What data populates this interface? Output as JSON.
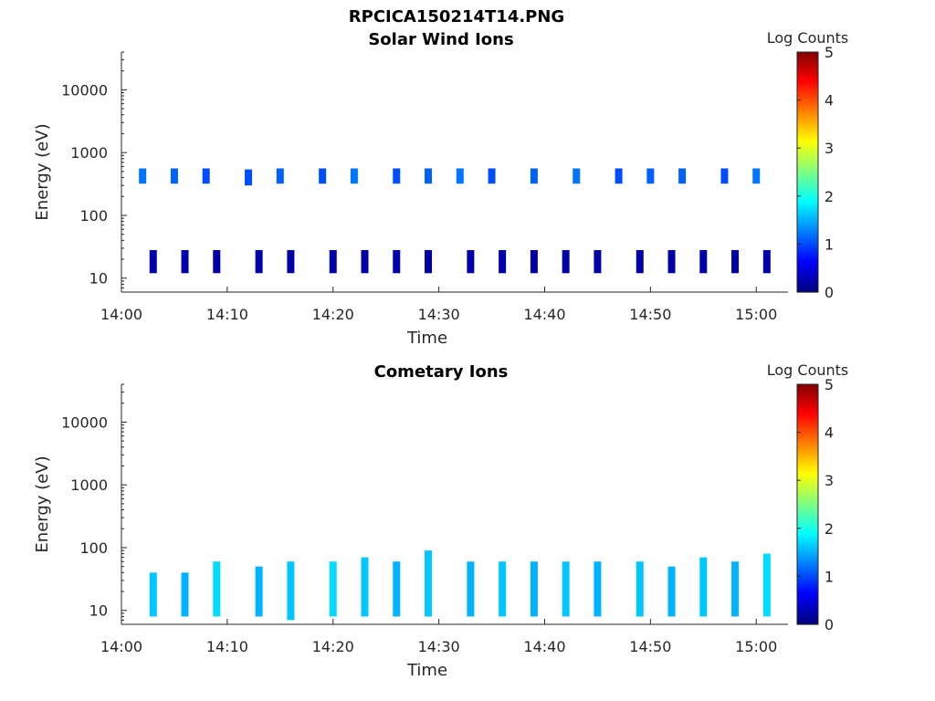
{
  "figure": {
    "title": "RPCICA150214T14.PNG"
  },
  "chart_data": [
    {
      "type": "heatmap",
      "title": "Solar Wind Ions",
      "xlabel": "Time",
      "ylabel": "Energy (eV)",
      "x_ticks": [
        "14:00",
        "14:10",
        "14:20",
        "14:30",
        "14:40",
        "14:50",
        "15:00"
      ],
      "xlim": [
        "14:00",
        "15:03"
      ],
      "y_scale": "log",
      "y_ticks": [
        10,
        100,
        1000,
        10000
      ],
      "y_tick_labels": [
        "10",
        "100",
        "1000",
        "10000"
      ],
      "ylim": [
        6,
        40000
      ],
      "colorbar": {
        "label": "Log Counts",
        "min": 0,
        "max": 5,
        "ticks": [
          "0",
          "1",
          "2",
          "3",
          "4",
          "5"
        ],
        "colormap": "jet"
      },
      "cells": [
        {
          "t": "14:02",
          "e_lo": 320,
          "e_hi": 560,
          "v": 1.2
        },
        {
          "t": "14:05",
          "e_lo": 320,
          "e_hi": 560,
          "v": 1.1
        },
        {
          "t": "14:08",
          "e_lo": 320,
          "e_hi": 560,
          "v": 1.0
        },
        {
          "t": "14:12",
          "e_lo": 300,
          "e_hi": 540,
          "v": 1.0
        },
        {
          "t": "14:15",
          "e_lo": 320,
          "e_hi": 560,
          "v": 1.1
        },
        {
          "t": "14:19",
          "e_lo": 320,
          "e_hi": 560,
          "v": 1.0
        },
        {
          "t": "14:22",
          "e_lo": 320,
          "e_hi": 560,
          "v": 1.2
        },
        {
          "t": "14:26",
          "e_lo": 320,
          "e_hi": 560,
          "v": 1.0
        },
        {
          "t": "14:29",
          "e_lo": 320,
          "e_hi": 560,
          "v": 1.1
        },
        {
          "t": "14:32",
          "e_lo": 320,
          "e_hi": 560,
          "v": 1.2
        },
        {
          "t": "14:35",
          "e_lo": 320,
          "e_hi": 560,
          "v": 1.0
        },
        {
          "t": "14:39",
          "e_lo": 320,
          "e_hi": 560,
          "v": 1.1
        },
        {
          "t": "14:43",
          "e_lo": 320,
          "e_hi": 560,
          "v": 1.2
        },
        {
          "t": "14:47",
          "e_lo": 320,
          "e_hi": 560,
          "v": 1.0
        },
        {
          "t": "14:50",
          "e_lo": 320,
          "e_hi": 560,
          "v": 1.1
        },
        {
          "t": "14:53",
          "e_lo": 320,
          "e_hi": 560,
          "v": 1.1
        },
        {
          "t": "14:57",
          "e_lo": 320,
          "e_hi": 560,
          "v": 1.0
        },
        {
          "t": "15:00",
          "e_lo": 320,
          "e_hi": 560,
          "v": 1.2
        },
        {
          "t": "14:03",
          "e_lo": 12,
          "e_hi": 28,
          "v": 0.2
        },
        {
          "t": "14:06",
          "e_lo": 12,
          "e_hi": 28,
          "v": 0.2
        },
        {
          "t": "14:09",
          "e_lo": 12,
          "e_hi": 28,
          "v": 0.2
        },
        {
          "t": "14:13",
          "e_lo": 12,
          "e_hi": 28,
          "v": 0.2
        },
        {
          "t": "14:16",
          "e_lo": 12,
          "e_hi": 28,
          "v": 0.2
        },
        {
          "t": "14:20",
          "e_lo": 12,
          "e_hi": 28,
          "v": 0.2
        },
        {
          "t": "14:23",
          "e_lo": 12,
          "e_hi": 28,
          "v": 0.2
        },
        {
          "t": "14:26",
          "e_lo": 12,
          "e_hi": 28,
          "v": 0.2
        },
        {
          "t": "14:29",
          "e_lo": 12,
          "e_hi": 28,
          "v": 0.2
        },
        {
          "t": "14:33",
          "e_lo": 12,
          "e_hi": 28,
          "v": 0.2
        },
        {
          "t": "14:36",
          "e_lo": 12,
          "e_hi": 28,
          "v": 0.2
        },
        {
          "t": "14:39",
          "e_lo": 12,
          "e_hi": 28,
          "v": 0.2
        },
        {
          "t": "14:42",
          "e_lo": 12,
          "e_hi": 28,
          "v": 0.2
        },
        {
          "t": "14:45",
          "e_lo": 12,
          "e_hi": 28,
          "v": 0.2
        },
        {
          "t": "14:49",
          "e_lo": 12,
          "e_hi": 28,
          "v": 0.2
        },
        {
          "t": "14:52",
          "e_lo": 12,
          "e_hi": 28,
          "v": 0.2
        },
        {
          "t": "14:55",
          "e_lo": 12,
          "e_hi": 28,
          "v": 0.2
        },
        {
          "t": "14:58",
          "e_lo": 12,
          "e_hi": 28,
          "v": 0.2
        },
        {
          "t": "15:01",
          "e_lo": 12,
          "e_hi": 28,
          "v": 0.2
        }
      ]
    },
    {
      "type": "heatmap",
      "title": "Cometary Ions",
      "xlabel": "Time",
      "ylabel": "Energy (eV)",
      "x_ticks": [
        "14:00",
        "14:10",
        "14:20",
        "14:30",
        "14:40",
        "14:50",
        "15:00"
      ],
      "xlim": [
        "14:00",
        "15:03"
      ],
      "y_scale": "log",
      "y_ticks": [
        10,
        100,
        1000,
        10000
      ],
      "y_tick_labels": [
        "10",
        "100",
        "1000",
        "10000"
      ],
      "ylim": [
        6,
        40000
      ],
      "colorbar": {
        "label": "Log Counts",
        "min": 0,
        "max": 5,
        "ticks": [
          "0",
          "1",
          "2",
          "3",
          "4",
          "5"
        ],
        "colormap": "jet"
      },
      "cells": [
        {
          "t": "14:03",
          "e_lo": 8,
          "e_hi": 40,
          "v": 1.6
        },
        {
          "t": "14:06",
          "e_lo": 8,
          "e_hi": 40,
          "v": 1.5
        },
        {
          "t": "14:09",
          "e_lo": 8,
          "e_hi": 60,
          "v": 1.7
        },
        {
          "t": "14:13",
          "e_lo": 8,
          "e_hi": 50,
          "v": 1.5
        },
        {
          "t": "14:16",
          "e_lo": 7,
          "e_hi": 60,
          "v": 1.6
        },
        {
          "t": "14:20",
          "e_lo": 8,
          "e_hi": 60,
          "v": 1.7
        },
        {
          "t": "14:23",
          "e_lo": 8,
          "e_hi": 70,
          "v": 1.6
        },
        {
          "t": "14:26",
          "e_lo": 8,
          "e_hi": 60,
          "v": 1.5
        },
        {
          "t": "14:29",
          "e_lo": 8,
          "e_hi": 90,
          "v": 1.6
        },
        {
          "t": "14:33",
          "e_lo": 8,
          "e_hi": 60,
          "v": 1.5
        },
        {
          "t": "14:36",
          "e_lo": 8,
          "e_hi": 60,
          "v": 1.6
        },
        {
          "t": "14:39",
          "e_lo": 8,
          "e_hi": 60,
          "v": 1.5
        },
        {
          "t": "14:42",
          "e_lo": 8,
          "e_hi": 60,
          "v": 1.6
        },
        {
          "t": "14:45",
          "e_lo": 8,
          "e_hi": 60,
          "v": 1.5
        },
        {
          "t": "14:49",
          "e_lo": 8,
          "e_hi": 60,
          "v": 1.6
        },
        {
          "t": "14:52",
          "e_lo": 8,
          "e_hi": 50,
          "v": 1.5
        },
        {
          "t": "14:55",
          "e_lo": 8,
          "e_hi": 70,
          "v": 1.6
        },
        {
          "t": "14:58",
          "e_lo": 8,
          "e_hi": 60,
          "v": 1.5
        },
        {
          "t": "15:01",
          "e_lo": 8,
          "e_hi": 80,
          "v": 1.7
        }
      ]
    }
  ]
}
